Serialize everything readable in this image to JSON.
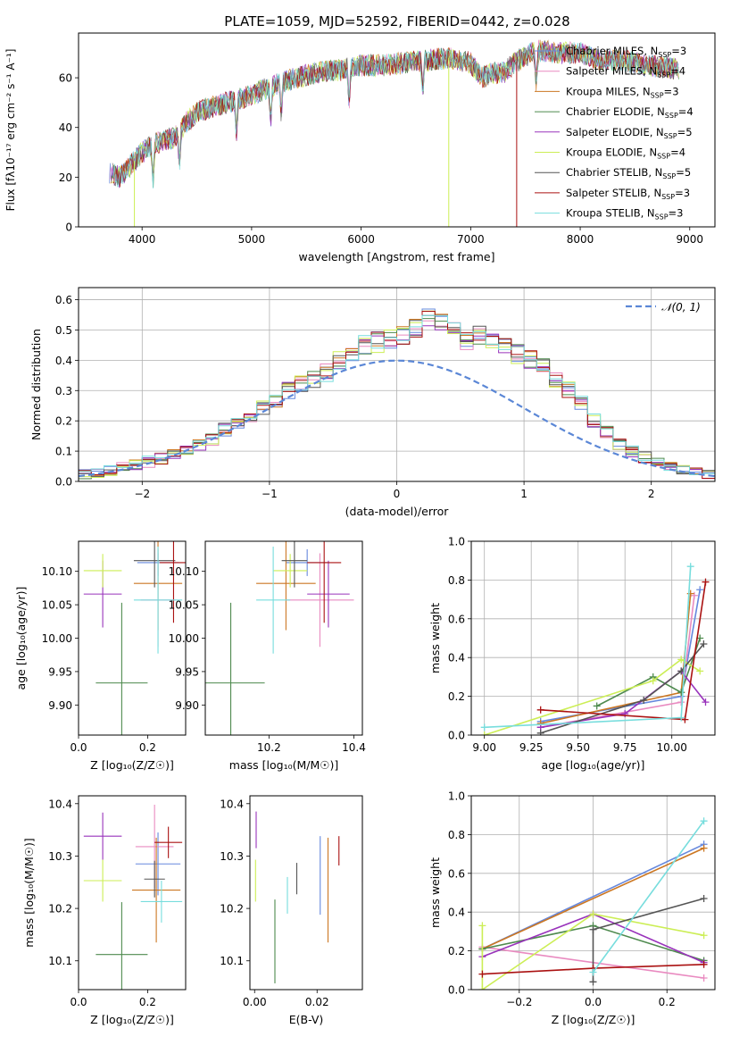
{
  "figure_title": "PLATE=1059, MJD=52592, FIBERID=0442, z=0.028",
  "models": [
    {
      "name": "Chabrier MILES",
      "nssp": "3",
      "color": "#6688dd"
    },
    {
      "name": "Salpeter MILES",
      "nssp": "4",
      "color": "#e98ac0"
    },
    {
      "name": "Kroupa MILES",
      "nssp": "3",
      "color": "#cc7722"
    },
    {
      "name": "Chabrier ELODIE",
      "nssp": "4",
      "color": "#4e8a4e"
    },
    {
      "name": "Salpeter ELODIE",
      "nssp": "5",
      "color": "#9933bb"
    },
    {
      "name": "Kroupa ELODIE",
      "nssp": "4",
      "color": "#ccee55"
    },
    {
      "name": "Chabrier STELIB",
      "nssp": "5",
      "color": "#555555"
    },
    {
      "name": "Salpeter STELIB",
      "nssp": "3",
      "color": "#aa1111"
    },
    {
      "name": "Kroupa STELIB",
      "nssp": "3",
      "color": "#77dddd"
    }
  ],
  "chart_data": [
    {
      "id": "spectrum",
      "type": "line",
      "xlabel": "wavelength [Angstrom, rest frame]",
      "ylabel": "Flux [fλ10⁻¹⁷ erg cm⁻² s⁻¹ A⁻¹]",
      "xlim": [
        3420,
        9230
      ],
      "ylim": [
        0,
        78
      ],
      "xticks": [
        4000,
        5000,
        6000,
        7000,
        8000,
        9000
      ],
      "yticks": [
        0,
        20,
        40,
        60
      ],
      "grid": false,
      "legend": "top-right",
      "continuum_x": [
        3700,
        3800,
        3900,
        4000,
        4100,
        4200,
        4300,
        4400,
        4500,
        4700,
        5000,
        5200,
        5400,
        5600,
        5800,
        6000,
        6200,
        6400,
        6600,
        6800,
        7000,
        7100,
        7200,
        7300,
        7400,
        7600,
        7800,
        8000,
        8200,
        8400,
        8600,
        8800,
        9000
      ],
      "continuum_y": [
        22,
        20,
        25,
        30,
        33,
        35,
        36,
        42,
        46,
        49,
        53,
        57,
        60,
        62,
        63,
        65,
        65,
        66,
        67,
        68,
        66,
        60,
        62,
        62,
        66,
        71,
        70,
        70,
        67,
        67,
        65,
        64,
        63
      ]
    },
    {
      "id": "residual_hist",
      "type": "line",
      "xlabel": "(data-model)/error",
      "ylabel": "Normed distribution",
      "xlim": [
        -2.5,
        2.5
      ],
      "ylim": [
        0,
        0.64
      ],
      "xticks": [
        -2,
        -1,
        0,
        1,
        2
      ],
      "yticks": [
        0.0,
        0.1,
        0.2,
        0.3,
        0.4,
        0.5,
        0.6
      ],
      "grid": true,
      "legend": "top-right",
      "reference_label": "𝒩(0, 1)",
      "reference_color": "#5b87d6",
      "bin_width": 0.1,
      "hist_profile": [
        0.01,
        0.015,
        0.02,
        0.025,
        0.03,
        0.035,
        0.045,
        0.055,
        0.065,
        0.075,
        0.09,
        0.1,
        0.12,
        0.14,
        0.17,
        0.19,
        0.21,
        0.24,
        0.27,
        0.3,
        0.32,
        0.34,
        0.36,
        0.4,
        0.42,
        0.45,
        0.46,
        0.47,
        0.48,
        0.5,
        0.55,
        0.52,
        0.49,
        0.47,
        0.48,
        0.47,
        0.44,
        0.42,
        0.4,
        0.38,
        0.34,
        0.3,
        0.26,
        0.2,
        0.16,
        0.12,
        0.1,
        0.08,
        0.06,
        0.05,
        0.04,
        0.03,
        0.025,
        0.02,
        0.015,
        0.01
      ]
    },
    {
      "id": "z_vs_age",
      "type": "scatter",
      "xlabel": "Z [log₁₀(Z/Z☉)]",
      "ylabel": "age  [log₁₀(age/yr)]",
      "xlim": [
        0.0,
        0.31
      ],
      "ylim": [
        9.855,
        10.145
      ],
      "xticks": [
        0.0,
        0.2
      ],
      "yticks": [
        9.9,
        9.95,
        10.0,
        10.05,
        10.1
      ],
      "grid": false,
      "points": [
        {
          "model": 0,
          "x": 0.23,
          "xerr": 0.06,
          "y": 10.113,
          "yerr": 0.02
        },
        {
          "model": 1,
          "x": 0.23,
          "xerr": 0.05,
          "y": 10.057,
          "yerr": 0.07
        },
        {
          "model": 2,
          "x": 0.23,
          "xerr": 0.07,
          "y": 10.082,
          "yerr": 0.07
        },
        {
          "model": 3,
          "x": 0.125,
          "xerr": 0.075,
          "y": 9.933,
          "yerr": 0.12
        },
        {
          "model": 4,
          "x": 0.07,
          "xerr": 0.055,
          "y": 10.066,
          "yerr": 0.05
        },
        {
          "model": 5,
          "x": 0.07,
          "xerr": 0.055,
          "y": 10.101,
          "yerr": 0.025
        },
        {
          "model": 6,
          "x": 0.22,
          "xerr": 0.06,
          "y": 10.116,
          "yerr": 0.04
        },
        {
          "model": 7,
          "x": 0.275,
          "xerr": 0.04,
          "y": 10.113,
          "yerr": 0.09
        },
        {
          "model": 8,
          "x": 0.23,
          "xerr": 0.07,
          "y": 10.057,
          "yerr": 0.08
        }
      ]
    },
    {
      "id": "mass_vs_age",
      "type": "scatter",
      "xlabel": "mass [log₁₀(M/M☉)]",
      "ylabel": "",
      "xlim": [
        10.05,
        10.42
      ],
      "ylim": [
        9.855,
        10.145
      ],
      "xticks": [
        10.0,
        10.2,
        10.4
      ],
      "yticks": [
        9.9,
        9.95,
        10.0,
        10.05,
        10.1
      ],
      "grid": false,
      "points": [
        {
          "model": 0,
          "x": 10.29,
          "xerr": 0.05,
          "y": 10.113,
          "yerr": 0.02
        },
        {
          "model": 1,
          "x": 10.32,
          "xerr": 0.08,
          "y": 10.057,
          "yerr": 0.07
        },
        {
          "model": 2,
          "x": 10.24,
          "xerr": 0.07,
          "y": 10.082,
          "yerr": 0.07
        },
        {
          "model": 3,
          "x": 10.11,
          "xerr": 0.08,
          "y": 9.933,
          "yerr": 0.12
        },
        {
          "model": 4,
          "x": 10.34,
          "xerr": 0.05,
          "y": 10.066,
          "yerr": 0.05
        },
        {
          "model": 5,
          "x": 10.25,
          "xerr": 0.04,
          "y": 10.101,
          "yerr": 0.025
        },
        {
          "model": 6,
          "x": 10.26,
          "xerr": 0.03,
          "y": 10.116,
          "yerr": 0.04
        },
        {
          "model": 7,
          "x": 10.33,
          "xerr": 0.04,
          "y": 10.113,
          "yerr": 0.09
        },
        {
          "model": 8,
          "x": 10.21,
          "xerr": 0.04,
          "y": 10.057,
          "yerr": 0.08
        }
      ]
    },
    {
      "id": "age_weights",
      "type": "line",
      "xlabel": "age  [log₁₀(age/yr)]",
      "ylabel": "mass weight",
      "xlim": [
        8.93,
        10.23
      ],
      "ylim": [
        0.0,
        1.0
      ],
      "xticks": [
        9.0,
        9.25,
        9.5,
        9.75,
        10.0
      ],
      "xticklabels": [
        "9.00",
        "9.25",
        "9.50",
        "9.75",
        "10.00"
      ],
      "yticks": [
        0.0,
        0.2,
        0.4,
        0.6,
        0.8,
        1.0
      ],
      "grid": true,
      "series": [
        {
          "model": 0,
          "x": [
            9.3,
            10.05,
            10.15
          ],
          "y": [
            0.07,
            0.2,
            0.75
          ]
        },
        {
          "model": 1,
          "x": [
            9.3,
            10.05,
            10.12
          ],
          "y": [
            0.04,
            0.17,
            0.72
          ]
        },
        {
          "model": 2,
          "x": [
            9.3,
            10.05,
            10.1
          ],
          "y": [
            0.06,
            0.22,
            0.73
          ]
        },
        {
          "model": 3,
          "x": [
            9.6,
            9.9,
            10.05,
            10.15
          ],
          "y": [
            0.15,
            0.3,
            0.22,
            0.5
          ]
        },
        {
          "model": 4,
          "x": [
            9.3,
            9.75,
            10.05,
            10.18
          ],
          "y": [
            0.04,
            0.11,
            0.33,
            0.17
          ]
        },
        {
          "model": 5,
          "x": [
            9.0,
            9.9,
            10.05,
            10.15
          ],
          "y": [
            0.0,
            0.28,
            0.39,
            0.33
          ]
        },
        {
          "model": 6,
          "x": [
            9.3,
            9.85,
            10.05,
            10.17
          ],
          "y": [
            0.01,
            0.18,
            0.33,
            0.47
          ]
        },
        {
          "model": 7,
          "x": [
            9.3,
            10.07,
            10.18
          ],
          "y": [
            0.13,
            0.08,
            0.79
          ]
        },
        {
          "model": 8,
          "x": [
            9.0,
            10.05,
            10.1
          ],
          "y": [
            0.04,
            0.09,
            0.87
          ]
        }
      ]
    },
    {
      "id": "z_vs_mass",
      "type": "scatter",
      "xlabel": "Z [log₁₀(Z/Z☉)]",
      "ylabel": "mass [log₁₀(M/M☉)]",
      "xlim": [
        0.0,
        0.31
      ],
      "ylim": [
        10.045,
        10.415
      ],
      "xticks": [
        0.0,
        0.2
      ],
      "yticks": [
        10.1,
        10.2,
        10.3,
        10.4
      ],
      "grid": false,
      "points": [
        {
          "model": 0,
          "x": 0.23,
          "xerr": 0.065,
          "y": 10.285,
          "yerr": 0.06
        },
        {
          "model": 1,
          "x": 0.22,
          "xerr": 0.055,
          "y": 10.318,
          "yerr": 0.08
        },
        {
          "model": 2,
          "x": 0.225,
          "xerr": 0.07,
          "y": 10.235,
          "yerr": 0.1
        },
        {
          "model": 3,
          "x": 0.125,
          "xerr": 0.075,
          "y": 10.112,
          "yerr": 0.1
        },
        {
          "model": 4,
          "x": 0.07,
          "xerr": 0.055,
          "y": 10.338,
          "yerr": 0.045
        },
        {
          "model": 5,
          "x": 0.07,
          "xerr": 0.055,
          "y": 10.253,
          "yerr": 0.04
        },
        {
          "model": 6,
          "x": 0.22,
          "xerr": 0.03,
          "y": 10.256,
          "yerr": 0.035
        },
        {
          "model": 7,
          "x": 0.26,
          "xerr": 0.04,
          "y": 10.326,
          "yerr": 0.03
        },
        {
          "model": 8,
          "x": 0.24,
          "xerr": 0.06,
          "y": 10.213,
          "yerr": 0.04
        }
      ]
    },
    {
      "id": "ebv_vs_mass",
      "type": "scatter",
      "xlabel": "E(B-V)",
      "ylabel": "",
      "xlim": [
        -0.0015,
        0.0345
      ],
      "ylim": [
        10.045,
        10.415
      ],
      "xticks": [
        0.0,
        0.02
      ],
      "xticklabels": [
        "0.00",
        "0.02"
      ],
      "yticks": [
        10.1,
        10.2,
        10.3,
        10.4
      ],
      "grid": false,
      "points": [
        {
          "model": 0,
          "x": 0.021,
          "y": 10.263,
          "yerr": 0.075
        },
        {
          "model": 1,
          "x": 0.0345,
          "y": 10.325,
          "yerr": 0.075
        },
        {
          "model": 2,
          "x": 0.0235,
          "y": 10.235,
          "yerr": 0.1
        },
        {
          "model": 3,
          "x": 0.0065,
          "y": 10.137,
          "yerr": 0.08
        },
        {
          "model": 4,
          "x": 0.0005,
          "y": 10.35,
          "yerr": 0.035
        },
        {
          "model": 5,
          "x": 0.0003,
          "y": 10.253,
          "yerr": 0.04
        },
        {
          "model": 6,
          "x": 0.0135,
          "y": 10.257,
          "yerr": 0.03
        },
        {
          "model": 7,
          "x": 0.027,
          "y": 10.31,
          "yerr": 0.028
        },
        {
          "model": 8,
          "x": 0.0105,
          "y": 10.225,
          "yerr": 0.035
        }
      ]
    },
    {
      "id": "z_weights",
      "type": "line",
      "xlabel": "Z [log₁₀(Z/Z☉)]",
      "ylabel": "mass weight",
      "xlim": [
        -0.33,
        0.33
      ],
      "ylim": [
        0.0,
        1.0
      ],
      "xticks": [
        -0.2,
        0.0,
        0.2
      ],
      "xticklabels": [
        "−0.2",
        "0.0",
        "0.2"
      ],
      "yticks": [
        0.0,
        0.2,
        0.4,
        0.6,
        0.8,
        1.0
      ],
      "grid": true,
      "series": [
        {
          "model": 0,
          "x": [
            -0.3,
            0.3
          ],
          "y": [
            0.21,
            0.75
          ]
        },
        {
          "model": 1,
          "x": [
            -0.3,
            0.3
          ],
          "y": [
            0.22,
            0.06
          ]
        },
        {
          "model": 2,
          "x": [
            -0.3,
            0.3
          ],
          "y": [
            0.21,
            0.73
          ]
        },
        {
          "model": 3,
          "x": [
            -0.3,
            0.0,
            0.3
          ],
          "y": [
            0.21,
            0.33,
            0.15
          ]
        },
        {
          "model": 4,
          "x": [
            -0.3,
            0.0,
            0.3
          ],
          "y": [
            0.17,
            0.39,
            0.14
          ]
        },
        {
          "model": 5,
          "x": [
            -0.3,
            -0.3,
            0.0,
            0.3
          ],
          "y": [
            0.33,
            0.0,
            0.39,
            0.28
          ]
        },
        {
          "model": 6,
          "x": [
            0.0,
            0.0,
            0.3
          ],
          "y": [
            0.04,
            0.31,
            0.47
          ]
        },
        {
          "model": 7,
          "x": [
            -0.3,
            0.0,
            0.3
          ],
          "y": [
            0.08,
            0.11,
            0.13
          ]
        },
        {
          "model": 8,
          "x": [
            0.0,
            0.3
          ],
          "y": [
            0.09,
            0.87
          ]
        }
      ]
    }
  ]
}
